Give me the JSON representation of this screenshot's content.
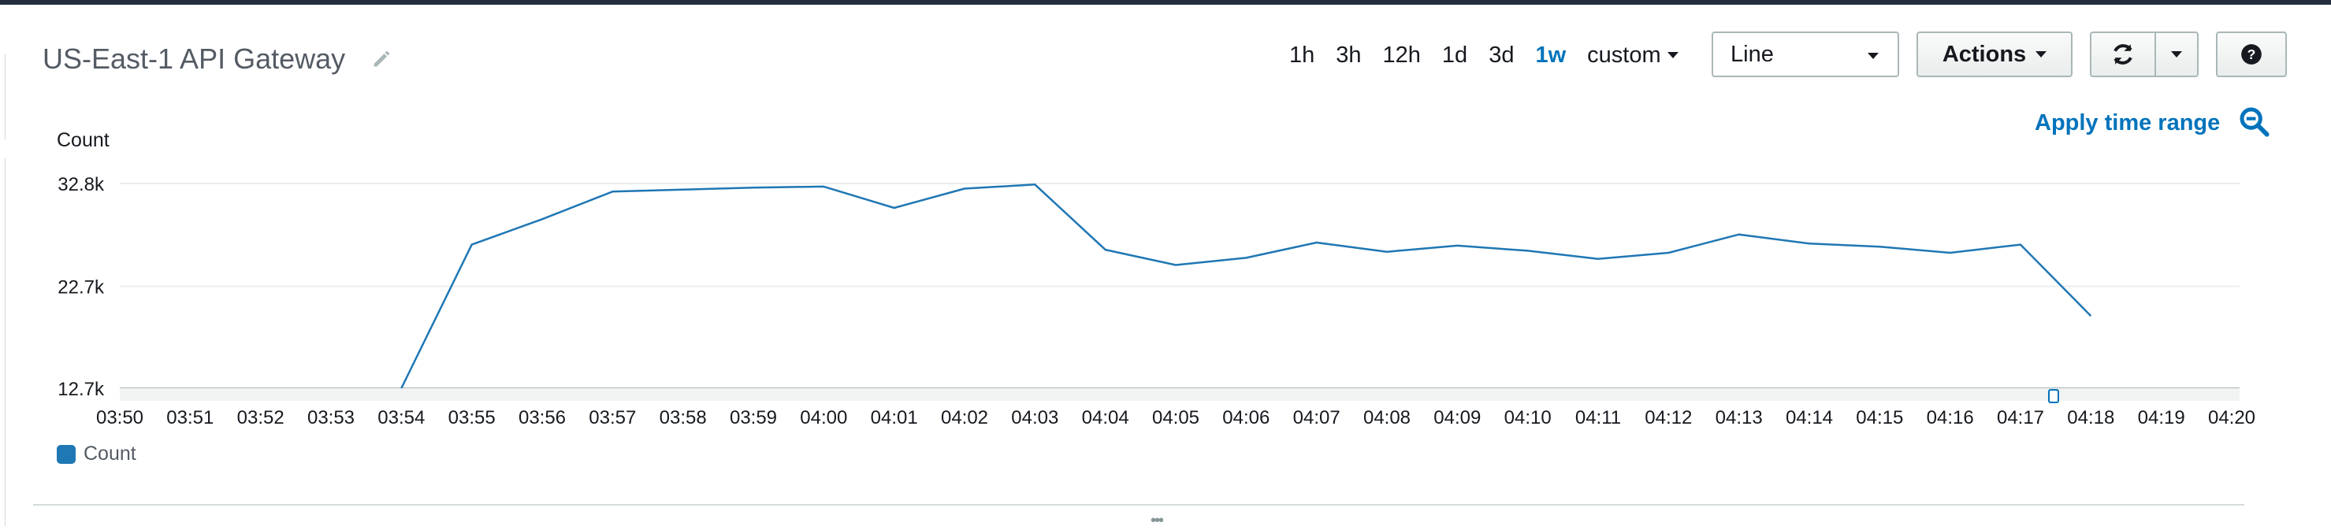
{
  "header": {
    "title": "US-East-1 API Gateway",
    "edit_icon": "pencil-icon"
  },
  "time_ranges": [
    {
      "label": "1h",
      "active": false
    },
    {
      "label": "3h",
      "active": false
    },
    {
      "label": "12h",
      "active": false
    },
    {
      "label": "1d",
      "active": false
    },
    {
      "label": "3d",
      "active": false
    },
    {
      "label": "1w",
      "active": true
    }
  ],
  "custom_label": "custom",
  "graph_type_select": {
    "value": "Line"
  },
  "actions_button": {
    "label": "Actions"
  },
  "refresh_icon": "refresh-icon",
  "help_icon": "question-icon",
  "apply_time_range": {
    "label": "Apply time range"
  },
  "zoom_icon": "magnify-minus-icon",
  "colors": {
    "accent": "#0073bb",
    "series": "#1f77b4",
    "topbar": "#232f3e"
  },
  "chart_data": {
    "type": "line",
    "ylabel": "Count",
    "ylim": [
      12700,
      32800
    ],
    "yticks": [
      "32.8k",
      "22.7k",
      "12.7k"
    ],
    "ytick_values": [
      32800,
      22700,
      12700
    ],
    "x": [
      "03:50",
      "03:51",
      "03:52",
      "03:53",
      "03:54",
      "03:55",
      "03:56",
      "03:57",
      "03:58",
      "03:59",
      "04:00",
      "04:01",
      "04:02",
      "04:03",
      "04:04",
      "04:05",
      "04:06",
      "04:07",
      "04:08",
      "04:09",
      "04:10",
      "04:11",
      "04:12",
      "04:13",
      "04:14",
      "04:15",
      "04:16",
      "04:17",
      "04:18",
      "04:19",
      "04:20"
    ],
    "series": [
      {
        "name": "Count",
        "values": [
          null,
          null,
          null,
          null,
          12700,
          26800,
          29300,
          32000,
          32200,
          32400,
          32500,
          30400,
          32300,
          32700,
          26300,
          24800,
          25500,
          27000,
          26100,
          26700,
          26200,
          25400,
          26000,
          27800,
          26900,
          26600,
          26000,
          26800,
          19800,
          null,
          null
        ]
      }
    ],
    "legend": [
      {
        "label": "Count",
        "color": "#1f77b4"
      }
    ],
    "legend_position": "bottom-left",
    "grid": true
  }
}
